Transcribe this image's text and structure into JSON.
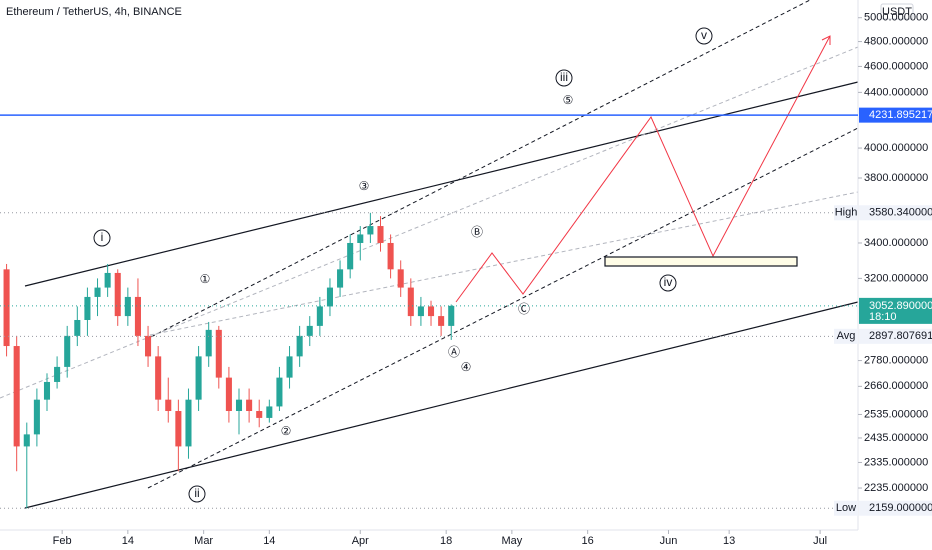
{
  "chart_data": {
    "type": "candlestick",
    "title": "Ethereum / TetherUS, 4h, BINANCE",
    "currency": "USDT",
    "log_scale": true,
    "up_color": "#26a69a",
    "down_color": "#ef5350",
    "x": [
      20,
      22,
      24,
      26,
      28,
      30,
      32,
      34,
      36,
      38,
      40,
      42,
      44,
      46,
      48,
      50,
      52,
      54,
      56,
      58,
      60,
      62,
      64,
      66,
      68,
      70,
      72,
      74,
      76,
      78,
      80,
      82,
      84,
      86,
      88,
      90,
      92,
      94,
      96,
      98,
      100,
      102,
      104,
      106,
      108
    ],
    "open": [
      3250,
      2850,
      2400,
      2450,
      2600,
      2680,
      2750,
      2900,
      2980,
      3100,
      3150,
      3230,
      3000,
      3100,
      2900,
      2800,
      2600,
      2550,
      2400,
      2600,
      2800,
      2930,
      2700,
      2550,
      2600,
      2550,
      2520,
      2570,
      2700,
      2800,
      2900,
      2950,
      3050,
      3150,
      3250,
      3400,
      3450,
      3500,
      3400,
      3250,
      3150,
      3000,
      3050,
      3000,
      2950
    ],
    "high": [
      3280,
      2900,
      2500,
      2650,
      2720,
      2800,
      2950,
      3050,
      3150,
      3200,
      3280,
      3250,
      3150,
      3200,
      2950,
      2850,
      2700,
      2600,
      2650,
      2850,
      2970,
      2950,
      2750,
      2650,
      2650,
      2600,
      2600,
      2750,
      2850,
      2950,
      3000,
      3100,
      3200,
      3300,
      3450,
      3500,
      3580,
      3560,
      3450,
      3300,
      3200,
      3100,
      3080,
      3050,
      3060
    ],
    "low": [
      2800,
      2300,
      2159,
      2400,
      2550,
      2650,
      2700,
      2850,
      2900,
      3000,
      3100,
      2950,
      2950,
      2850,
      2750,
      2550,
      2500,
      2300,
      2350,
      2550,
      2750,
      2650,
      2500,
      2450,
      2500,
      2480,
      2500,
      2550,
      2650,
      2750,
      2850,
      2900,
      3000,
      3100,
      3200,
      3300,
      3400,
      3350,
      3200,
      3100,
      2950,
      2950,
      2950,
      2900,
      2880
    ],
    "close": [
      2850,
      2400,
      2450,
      2600,
      2680,
      2750,
      2900,
      2980,
      3100,
      3150,
      3230,
      3000,
      3100,
      2900,
      2800,
      2600,
      2550,
      2400,
      2600,
      2800,
      2930,
      2700,
      2550,
      2600,
      2550,
      2520,
      2570,
      2700,
      2800,
      2900,
      2950,
      3050,
      3150,
      3250,
      3400,
      3450,
      3500,
      3400,
      3250,
      3150,
      3000,
      3050,
      3000,
      2950,
      3053
    ],
    "xlim": [
      18.7,
      188.5
    ],
    "xticks": [
      {
        "value": 31,
        "label": "Feb"
      },
      {
        "value": 44,
        "label": "14"
      },
      {
        "value": 59,
        "label": "Mar"
      },
      {
        "value": 72,
        "label": "14"
      },
      {
        "value": 90,
        "label": "Apr"
      },
      {
        "value": 107,
        "label": "18"
      },
      {
        "value": 120,
        "label": "May"
      },
      {
        "value": 135,
        "label": "16"
      },
      {
        "value": 151,
        "label": "Jun"
      },
      {
        "value": 163,
        "label": "13"
      },
      {
        "value": 181,
        "label": "Jul"
      }
    ],
    "ylim": [
      2080,
      5154
    ],
    "yticks": [
      {
        "value": 5000,
        "label": "5000.000000"
      },
      {
        "value": 4800,
        "label": "4800.000000"
      },
      {
        "value": 4600,
        "label": "4600.000000"
      },
      {
        "value": 4400,
        "label": "4400.000000"
      },
      {
        "value": 4000,
        "label": "4000.000000"
      },
      {
        "value": 3800,
        "label": "3800.000000"
      },
      {
        "value": 3400,
        "label": "3400.000000"
      },
      {
        "value": 3200,
        "label": "3200.000000"
      },
      {
        "value": 2780,
        "label": "2780.000000"
      },
      {
        "value": 2660,
        "label": "2660.000000"
      },
      {
        "value": 2535,
        "label": "2535.000000"
      },
      {
        "value": 2435,
        "label": "2435.000000"
      },
      {
        "value": 2335,
        "label": "2335.000000"
      },
      {
        "value": 2235,
        "label": "2235.000000"
      }
    ],
    "markers": [
      {
        "value": 4231.895217,
        "color": "#2962ff"
      },
      {
        "name": "High",
        "value": 3580.34,
        "label": "3580.340000"
      },
      {
        "value": 3052.89,
        "label": "3052.890000",
        "countdown": "18:10",
        "color": "#26a69a"
      },
      {
        "name": "Avg",
        "value": 2897.807691,
        "label": "2897.807691"
      },
      {
        "name": "Low",
        "value": 2159,
        "label": "2159.000000"
      }
    ],
    "annotations": [
      "i",
      "ii",
      "iii",
      "iv",
      "v",
      "①",
      "②",
      "③",
      "④",
      "⑤",
      "Ⓐ",
      "Ⓑ",
      "Ⓒ"
    ]
  }
}
